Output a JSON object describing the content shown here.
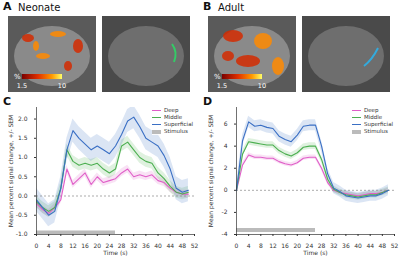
{
  "panels": [
    {
      "panel_label": "A",
      "title": "Neonate",
      "colorbar": {
        "label": "%",
        "range": [
          1.5,
          10
        ],
        "ticks": [
          1.5,
          10
        ]
      }
    },
    {
      "panel_label": "B",
      "title": "Adult",
      "colorbar": {
        "label": "%",
        "range": [
          1.5,
          10
        ],
        "ticks": [
          1.5,
          10
        ]
      }
    }
  ],
  "chart_data": [
    {
      "type": "line",
      "panel_label": "C",
      "x_label": "Time (s)",
      "y_label": "Mean percent signal change, +/- SEM",
      "x": [
        0,
        2,
        4,
        6,
        8,
        10,
        12,
        14,
        16,
        18,
        20,
        22,
        24,
        26,
        28,
        30,
        32,
        34,
        36,
        38,
        40,
        42,
        44,
        46,
        48,
        50
      ],
      "xlim": [
        0,
        52
      ],
      "xticks": [
        0,
        4,
        8,
        12,
        16,
        20,
        24,
        28,
        32,
        36,
        40,
        44,
        48,
        52
      ],
      "ylim": [
        -1,
        2.3
      ],
      "yticks": [
        {
          "value": -1,
          "label": "-1.0"
        },
        -0.5,
        {
          "value": 0,
          "label": "0.0"
        },
        0.5,
        {
          "value": 1,
          "label": "1.0"
        },
        1.5,
        {
          "value": 2,
          "label": "2.0"
        }
      ],
      "hline": 0,
      "grid": false,
      "legend": "top-right",
      "series": [
        {
          "name": "Deep",
          "color": "#e05fc8",
          "values": [
            -0.2,
            -0.35,
            -0.45,
            -0.3,
            -0.1,
            0.7,
            0.3,
            0.45,
            0.6,
            0.3,
            0.5,
            0.35,
            0.4,
            0.45,
            0.6,
            0.7,
            0.5,
            0.55,
            0.5,
            0.55,
            0.4,
            0.35,
            0.2,
            0.1,
            0.05,
            0.05
          ],
          "sem": [
            0.1,
            0.1,
            0.1,
            0.1,
            0.1,
            0.1,
            0.1,
            0.1,
            0.1,
            0.1,
            0.1,
            0.1,
            0.1,
            0.1,
            0.1,
            0.1,
            0.1,
            0.1,
            0.1,
            0.1,
            0.1,
            0.1,
            0.1,
            0.1,
            0.1,
            0.1
          ]
        },
        {
          "name": "Middle",
          "color": "#4caf50",
          "values": [
            -0.15,
            -0.3,
            -0.4,
            -0.3,
            0.2,
            1.2,
            0.9,
            0.8,
            0.85,
            0.8,
            0.85,
            0.7,
            0.6,
            0.7,
            1.3,
            1.4,
            1.2,
            1.0,
            0.9,
            0.85,
            0.6,
            0.45,
            0.25,
            0.1,
            0.05,
            0.1
          ],
          "sem": [
            0.15,
            0.15,
            0.15,
            0.15,
            0.15,
            0.15,
            0.15,
            0.15,
            0.15,
            0.15,
            0.15,
            0.15,
            0.15,
            0.15,
            0.15,
            0.15,
            0.15,
            0.15,
            0.15,
            0.15,
            0.15,
            0.15,
            0.15,
            0.15,
            0.15,
            0.15
          ]
        },
        {
          "name": "Superficial",
          "color": "#3a6fc4",
          "values": [
            -0.1,
            -0.3,
            -0.5,
            -0.4,
            0.2,
            1.2,
            1.7,
            1.5,
            1.35,
            1.2,
            1.3,
            1.2,
            1.1,
            1.3,
            1.6,
            1.95,
            2.05,
            1.8,
            1.5,
            1.4,
            1.3,
            1.05,
            0.7,
            0.2,
            0.1,
            0.15
          ],
          "sem": [
            0.3,
            0.3,
            0.3,
            0.3,
            0.3,
            0.3,
            0.3,
            0.3,
            0.3,
            0.3,
            0.3,
            0.3,
            0.3,
            0.3,
            0.3,
            0.3,
            0.3,
            0.3,
            0.3,
            0.3,
            0.3,
            0.3,
            0.3,
            0.3,
            0.3,
            0.3
          ]
        }
      ],
      "stimulus": {
        "name": "Stimulus",
        "color": "#bbbbbb",
        "start": 0,
        "end": 26,
        "y": -0.95
      }
    },
    {
      "type": "line",
      "panel_label": "D",
      "x_label": "Time (s)",
      "y_label": "Mean percent signal change, +/- SEM",
      "x": [
        0,
        2,
        4,
        6,
        8,
        10,
        12,
        14,
        16,
        18,
        20,
        22,
        24,
        26,
        28,
        30,
        32,
        34,
        36,
        38,
        40,
        42,
        44,
        46,
        48,
        50
      ],
      "xlim": [
        0,
        52
      ],
      "xticks": [
        0,
        4,
        8,
        12,
        16,
        20,
        24,
        28,
        32,
        36,
        40,
        44,
        48,
        52
      ],
      "ylim": [
        -4,
        7.5
      ],
      "yticks": [
        -4,
        -2,
        0,
        2,
        4,
        6
      ],
      "hline": 0,
      "grid": false,
      "legend": "top-right",
      "series": [
        {
          "name": "Deep",
          "color": "#e05fc8",
          "values": [
            0,
            2.3,
            3.2,
            3.0,
            3.0,
            2.9,
            2.9,
            2.6,
            2.4,
            2.3,
            2.5,
            2.9,
            3.0,
            3.0,
            2.0,
            0.7,
            0.0,
            -0.2,
            -0.3,
            -0.4,
            -0.5,
            -0.4,
            -0.3,
            -0.3,
            -0.2,
            0.0
          ],
          "sem": [
            0.2,
            0.2,
            0.2,
            0.2,
            0.2,
            0.2,
            0.2,
            0.2,
            0.2,
            0.2,
            0.2,
            0.2,
            0.2,
            0.2,
            0.2,
            0.2,
            0.2,
            0.2,
            0.2,
            0.2,
            0.2,
            0.2,
            0.2,
            0.2,
            0.2,
            0.2
          ]
        },
        {
          "name": "Middle",
          "color": "#4caf50",
          "values": [
            0,
            3.3,
            4.4,
            4.3,
            4.2,
            4.1,
            4.1,
            3.6,
            3.3,
            3.1,
            3.4,
            3.9,
            4.0,
            4.0,
            2.8,
            1.0,
            0.1,
            -0.2,
            -0.4,
            -0.5,
            -0.6,
            -0.5,
            -0.4,
            -0.4,
            -0.2,
            0.0
          ],
          "sem": [
            0.3,
            0.3,
            0.3,
            0.3,
            0.3,
            0.3,
            0.3,
            0.3,
            0.3,
            0.3,
            0.3,
            0.3,
            0.3,
            0.3,
            0.3,
            0.3,
            0.3,
            0.3,
            0.3,
            0.3,
            0.3,
            0.3,
            0.3,
            0.3,
            0.3,
            0.3
          ]
        },
        {
          "name": "Superficial",
          "color": "#3a6fc4",
          "values": [
            0,
            4.5,
            6.2,
            5.8,
            5.9,
            5.7,
            5.6,
            4.9,
            4.6,
            4.4,
            5.0,
            5.8,
            5.9,
            5.9,
            4.0,
            1.5,
            0.2,
            -0.1,
            -0.5,
            -0.6,
            -0.7,
            -0.6,
            -0.5,
            -0.5,
            -0.3,
            0.0
          ],
          "sem": [
            0.5,
            0.5,
            0.5,
            0.5,
            0.5,
            0.5,
            0.5,
            0.5,
            0.5,
            0.5,
            0.5,
            0.5,
            0.5,
            0.5,
            0.5,
            0.5,
            0.5,
            0.5,
            0.5,
            0.5,
            0.5,
            0.5,
            0.5,
            0.5,
            0.5,
            0.5
          ]
        }
      ],
      "stimulus": {
        "name": "Stimulus",
        "color": "#bbbbbb",
        "start": 0,
        "end": 26,
        "y": -3.6
      }
    }
  ]
}
